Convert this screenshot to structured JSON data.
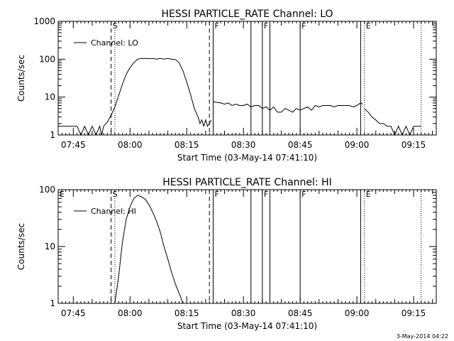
{
  "footer": {
    "timestamp": "3-May-2014 04:22"
  },
  "chart_data": [
    {
      "type": "line",
      "title": "HESSI PARTICLE_RATE Channel: LO",
      "xlabel": "Start Time (03-May-14 07:41:10)",
      "ylabel": "Counts/sec",
      "xscale": "time (minutes)",
      "xlim": [
        "07:41",
        "09:21"
      ],
      "yscale": "log",
      "ylim": [
        1,
        1000
      ],
      "grid": false,
      "legend_position": "top-left",
      "series": [
        {
          "name": "Channel: LO",
          "x": [
            "07:41",
            "07:46",
            "07:47",
            "07:48",
            "07:49",
            "07:50",
            "07:51",
            "07:52",
            "07:52:30",
            "07:53",
            "07:54",
            "07:55",
            "07:56",
            "07:57",
            "07:58",
            "07:59",
            "08:00",
            "08:01",
            "08:02",
            "08:03",
            "08:04",
            "08:05",
            "08:06",
            "08:07",
            "08:08",
            "08:09",
            "08:10",
            "08:11",
            "08:12",
            "08:13",
            "08:14",
            "08:15",
            "08:16",
            "08:17",
            "08:18",
            "08:18:30",
            "08:19",
            "08:19:30",
            "08:20",
            "08:20:30",
            "08:21",
            "08:21:30"
          ],
          "values": [
            1.7,
            1.7,
            1.0,
            1.7,
            1.0,
            1.7,
            1.0,
            1.7,
            1.0,
            1.7,
            2.2,
            3.3,
            5.5,
            11,
            22,
            40,
            60,
            80,
            100,
            105,
            105,
            103,
            105,
            100,
            105,
            100,
            105,
            100,
            98,
            80,
            50,
            25,
            12,
            5,
            3,
            2,
            2.5,
            1.7,
            2.5,
            1.7,
            2.0,
            2.5
          ]
        },
        {
          "name": "Channel: LO",
          "x": [
            "08:22",
            "08:24",
            "08:25",
            "08:26",
            "08:27",
            "08:28",
            "08:29",
            "08:30",
            "08:31",
            "08:32",
            "08:33",
            "08:34",
            "08:35",
            "08:36",
            "08:37",
            "08:38",
            "08:39",
            "08:40",
            "08:41",
            "08:42",
            "08:43",
            "08:44",
            "08:45",
            "08:46",
            "08:47",
            "08:48",
            "08:49",
            "08:50",
            "08:51",
            "08:52",
            "08:53",
            "08:54",
            "08:55",
            "08:56",
            "08:57",
            "08:58",
            "08:59",
            "09:00",
            "09:01",
            "09:01:30"
          ],
          "values": [
            7.5,
            7,
            6.5,
            7,
            6,
            6.5,
            6,
            6,
            6.5,
            5.5,
            6,
            6,
            5,
            5.5,
            4.5,
            5.5,
            4,
            4,
            5,
            4.5,
            4,
            5,
            4.5,
            5,
            5.5,
            4.5,
            6,
            5.5,
            6,
            6,
            6,
            5.5,
            6,
            6,
            6,
            6,
            5.5,
            6,
            7,
            6.5
          ]
        },
        {
          "name": "Channel: LO",
          "x": [
            "09:02",
            "09:03",
            "09:04",
            "09:05",
            "09:06",
            "09:07",
            "09:08",
            "09:09",
            "09:10",
            "09:11",
            "09:12",
            "09:13",
            "09:14",
            "09:15",
            "09:16",
            "09:17"
          ],
          "values": [
            5,
            4,
            3,
            2.5,
            2,
            2,
            1.7,
            1.7,
            1,
            1.7,
            1,
            1.7,
            1,
            1.7,
            1.7,
            1.7
          ]
        }
      ],
      "markers": [
        {
          "time": "07:55",
          "label": "S",
          "style": "dashed"
        },
        {
          "time": "07:56",
          "label": "",
          "style": "dotted"
        },
        {
          "time": "08:21",
          "label": "",
          "style": "dashed"
        },
        {
          "time": "08:22",
          "label": "F",
          "style": "solid"
        },
        {
          "time": "08:32",
          "label": "",
          "style": "solid"
        },
        {
          "time": "08:35",
          "label": "F",
          "style": "solid"
        },
        {
          "time": "08:37",
          "label": "",
          "style": "solid"
        },
        {
          "time": "08:45",
          "label": "F",
          "style": "solid"
        },
        {
          "time": "09:01",
          "label": "",
          "style": "solid"
        },
        {
          "time": "09:02",
          "label": "E",
          "style": "dotted"
        },
        {
          "time": "09:17",
          "label": "",
          "style": "dotted"
        }
      ],
      "x_ticks": [
        "07:45",
        "08:00",
        "08:15",
        "08:30",
        "08:45",
        "09:00",
        "09:15"
      ],
      "y_ticks": [
        "1",
        "10",
        "100",
        "1000"
      ]
    },
    {
      "type": "line",
      "title": "HESSI PARTICLE_RATE Channel: HI",
      "xlabel": "Start Time (03-May-14 07:41:10)",
      "ylabel": "Counts/sec",
      "xscale": "time (minutes)",
      "xlim": [
        "07:41",
        "09:21"
      ],
      "yscale": "log",
      "ylim": [
        1,
        100
      ],
      "grid": false,
      "legend_position": "top-left",
      "series": [
        {
          "name": "Channel: HI",
          "x": [
            "07:56",
            "07:57",
            "07:58",
            "07:59",
            "08:00",
            "08:01",
            "08:02",
            "08:03",
            "08:04",
            "08:05",
            "08:06",
            "08:07",
            "08:08",
            "08:09",
            "08:10",
            "08:11",
            "08:12",
            "08:13",
            "08:14"
          ],
          "values": [
            1.0,
            3,
            12,
            30,
            50,
            70,
            80,
            75,
            68,
            55,
            40,
            28,
            18,
            10,
            6,
            3.5,
            2.2,
            1.5,
            1.0
          ]
        }
      ],
      "markers": [
        {
          "time": "07:41",
          "label": "E",
          "style": "none"
        },
        {
          "time": "07:55",
          "label": "S",
          "style": "dashed"
        },
        {
          "time": "07:56",
          "label": "",
          "style": "dotted"
        },
        {
          "time": "08:21",
          "label": "",
          "style": "dashed"
        },
        {
          "time": "08:22",
          "label": "F",
          "style": "solid"
        },
        {
          "time": "08:32",
          "label": "",
          "style": "solid"
        },
        {
          "time": "08:35",
          "label": "F",
          "style": "solid"
        },
        {
          "time": "08:37",
          "label": "",
          "style": "solid"
        },
        {
          "time": "08:45",
          "label": "F",
          "style": "solid"
        },
        {
          "time": "09:01",
          "label": "",
          "style": "solid"
        },
        {
          "time": "09:02",
          "label": "E",
          "style": "dotted"
        },
        {
          "time": "09:17",
          "label": "",
          "style": "dotted"
        }
      ],
      "x_ticks": [
        "07:45",
        "08:00",
        "08:15",
        "08:30",
        "08:45",
        "09:00",
        "09:15"
      ],
      "y_ticks": [
        "1",
        "10",
        "100"
      ]
    }
  ]
}
